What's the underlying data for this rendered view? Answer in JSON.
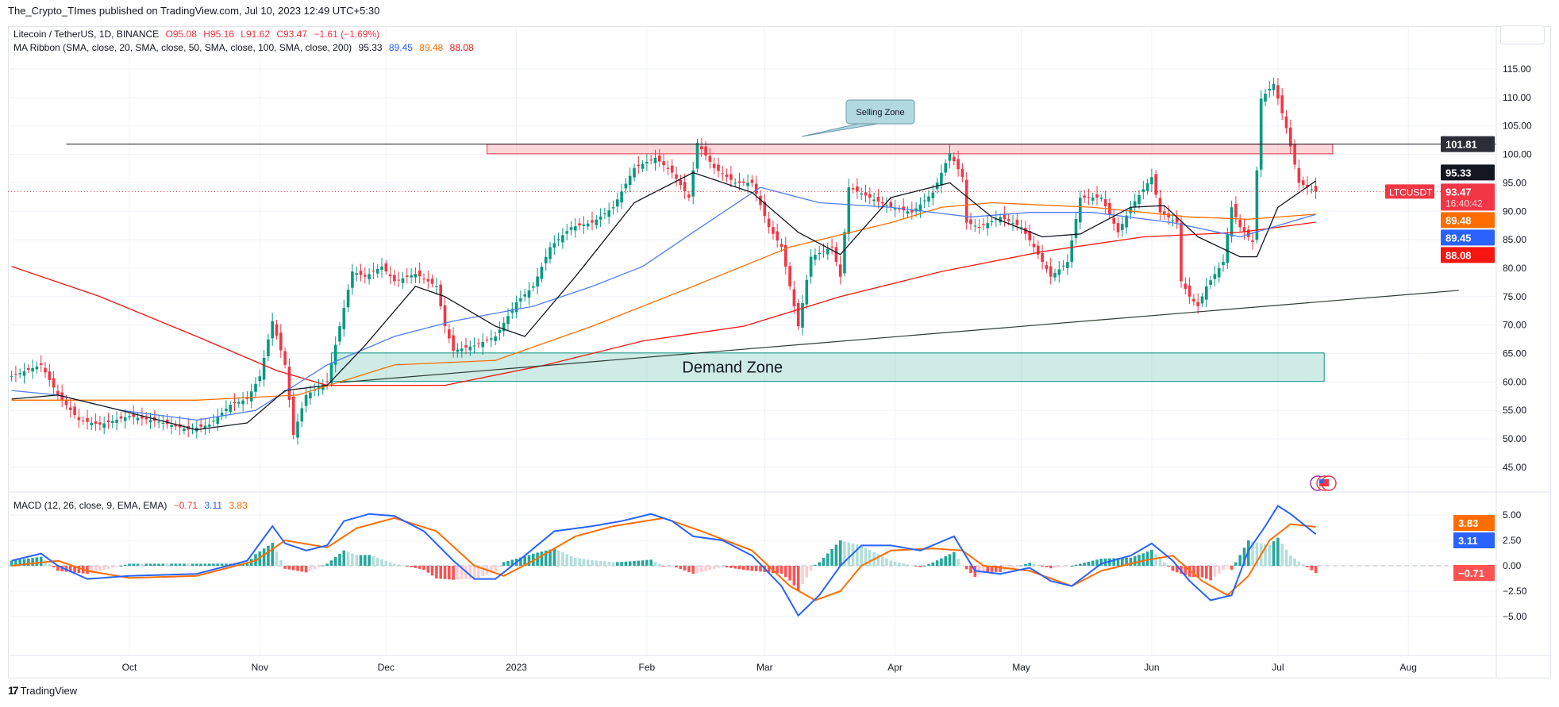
{
  "header": {
    "published": "The_Crypto_TImes published on TradingView.com, Jul 10, 2023 12:49 UTC+5:30"
  },
  "legend": {
    "symbol": "Litecoin / TetherUS, 1D, BINANCE",
    "open": "O95.08",
    "high": "H95.16",
    "low": "L91.62",
    "close": "C93.47",
    "change": "−1.61 (−1.69%)",
    "ma_title": "MA Ribbon (SMA, close, 20, SMA, close, 50, SMA, close, 100, SMA, close, 200)",
    "ma20": "95.33",
    "ma50": "89.45",
    "ma100": "89.48",
    "ma200": "88.08",
    "macd_title": "MACD (12, 26, close, 9, EMA, EMA)",
    "macd_hist": "−0.71",
    "macd_line": "3.11",
    "macd_signal": "3.83"
  },
  "footer": {
    "brand": "TradingView"
  },
  "colors": {
    "up": "#089981",
    "down": "#f23645",
    "ma20": "#131722",
    "ma50": "#4f7df5",
    "ma100": "#ff6d00",
    "ma200": "#f7150f",
    "macd": "#2962ff",
    "signal": "#ff6d00",
    "hist_up_strong": "#26a69a",
    "hist_up_weak": "#b2dfdb",
    "hist_down_strong": "#ff5252",
    "hist_down_weak": "#ffcdd2"
  },
  "chart_data": [
    {
      "type": "candlestick",
      "symbol": "LTCUSDT",
      "ylim": [
        42,
        118
      ],
      "yticks": [
        "115.00",
        "110.00",
        "105.00",
        "100.00",
        "95.00",
        "90.00",
        "85.00",
        "80.00",
        "75.00",
        "70.00",
        "65.00",
        "60.00",
        "55.00",
        "50.00",
        "45.00"
      ],
      "xticks": [
        {
          "label": "Oct",
          "date": "2022-10-01"
        },
        {
          "label": "Nov",
          "date": "2022-11-01"
        },
        {
          "label": "Dec",
          "date": "2022-12-01"
        },
        {
          "label": "2023",
          "date": "2023-01-01"
        },
        {
          "label": "Feb",
          "date": "2023-02-01"
        },
        {
          "label": "Mar",
          "date": "2023-03-01"
        },
        {
          "label": "Apr",
          "date": "2023-04-01"
        },
        {
          "label": "May",
          "date": "2023-05-01"
        },
        {
          "label": "Jun",
          "date": "2023-06-01"
        },
        {
          "label": "Jul",
          "date": "2023-07-01"
        },
        {
          "label": "Aug",
          "date": "2023-08-01"
        }
      ],
      "close": [
        [
          "2022-09-03",
          61
        ],
        [
          "2022-09-10",
          63
        ],
        [
          "2022-09-14",
          57.7
        ],
        [
          "2022-09-19",
          53.3
        ],
        [
          "2022-09-24",
          52.5
        ],
        [
          "2022-10-01",
          54
        ],
        [
          "2022-10-08",
          53
        ],
        [
          "2022-10-15",
          51.6
        ],
        [
          "2022-10-20",
          52.5
        ],
        [
          "2022-10-25",
          56
        ],
        [
          "2022-10-29",
          57
        ],
        [
          "2022-11-01",
          61
        ],
        [
          "2022-11-04",
          70.7
        ],
        [
          "2022-11-07",
          63
        ],
        [
          "2022-11-09",
          50.7
        ],
        [
          "2022-11-12",
          57.7
        ],
        [
          "2022-11-17",
          60
        ],
        [
          "2022-11-20",
          69.8
        ],
        [
          "2022-11-23",
          79.4
        ],
        [
          "2022-11-26",
          78.5
        ],
        [
          "2022-11-30",
          80.3
        ],
        [
          "2022-12-03",
          77.7
        ],
        [
          "2022-12-08",
          79
        ],
        [
          "2022-12-13",
          76.8
        ],
        [
          "2022-12-15",
          69.8
        ],
        [
          "2022-12-17",
          65.5
        ],
        [
          "2022-12-22",
          66.4
        ],
        [
          "2022-12-27",
          68
        ],
        [
          "2023-01-01",
          74
        ],
        [
          "2023-01-05",
          76.8
        ],
        [
          "2023-01-09",
          83.7
        ],
        [
          "2023-01-14",
          87.2
        ],
        [
          "2023-01-19",
          88
        ],
        [
          "2023-01-24",
          90.7
        ],
        [
          "2023-01-29",
          97.6
        ],
        [
          "2023-02-03",
          99.4
        ],
        [
          "2023-02-07",
          96.8
        ],
        [
          "2023-02-11",
          92.4
        ],
        [
          "2023-02-13",
          102
        ],
        [
          "2023-02-17",
          97.6
        ],
        [
          "2023-02-22",
          95
        ],
        [
          "2023-02-26",
          95
        ],
        [
          "2023-03-02",
          87.2
        ],
        [
          "2023-03-05",
          83.7
        ],
        [
          "2023-03-07",
          76.8
        ],
        [
          "2023-03-09",
          69.8
        ],
        [
          "2023-03-12",
          82
        ],
        [
          "2023-03-17",
          83.7
        ],
        [
          "2023-03-19",
          78.5
        ],
        [
          "2023-03-21",
          94.2
        ],
        [
          "2023-03-26",
          92.4
        ],
        [
          "2023-03-31",
          90.7
        ],
        [
          "2023-04-05",
          89.8
        ],
        [
          "2023-04-10",
          93.3
        ],
        [
          "2023-04-14",
          100.2
        ],
        [
          "2023-04-17",
          96
        ],
        [
          "2023-04-18",
          88
        ],
        [
          "2023-04-21",
          87.2
        ],
        [
          "2023-04-26",
          89
        ],
        [
          "2023-05-01",
          87.2
        ],
        [
          "2023-05-04",
          83.7
        ],
        [
          "2023-05-08",
          78.5
        ],
        [
          "2023-05-12",
          81.1
        ],
        [
          "2023-05-15",
          92.4
        ],
        [
          "2023-05-20",
          92.4
        ],
        [
          "2023-05-24",
          86.3
        ],
        [
          "2023-05-27",
          90.7
        ],
        [
          "2023-06-01",
          96
        ],
        [
          "2023-06-03",
          89.8
        ],
        [
          "2023-06-07",
          88
        ],
        [
          "2023-06-08",
          77.7
        ],
        [
          "2023-06-10",
          75
        ],
        [
          "2023-06-12",
          73.3
        ],
        [
          "2023-06-14",
          76.8
        ],
        [
          "2023-06-18",
          81.1
        ],
        [
          "2023-06-20",
          90.7
        ],
        [
          "2023-06-22",
          87.2
        ],
        [
          "2023-06-25",
          84.6
        ],
        [
          "2023-06-27",
          109.8
        ],
        [
          "2023-06-30",
          112.4
        ],
        [
          "2023-07-03",
          104.6
        ],
        [
          "2023-07-06",
          95
        ],
        [
          "2023-07-10",
          93.47
        ]
      ],
      "ma_ribbon": {
        "ma20": [
          [
            "2022-09-03",
            57
          ],
          [
            "2022-09-14",
            57.7
          ],
          [
            "2022-09-29",
            55
          ],
          [
            "2022-10-17",
            51.6
          ],
          [
            "2022-10-29",
            52.8
          ],
          [
            "2022-11-07",
            58.5
          ],
          [
            "2022-11-17",
            59.4
          ],
          [
            "2022-11-26",
            66.4
          ],
          [
            "2022-12-08",
            76.8
          ],
          [
            "2022-12-15",
            75
          ],
          [
            "2022-12-27",
            69.8
          ],
          [
            "2023-01-03",
            68
          ],
          [
            "2023-01-15",
            78.5
          ],
          [
            "2023-01-29",
            91.5
          ],
          [
            "2023-02-12",
            96.8
          ],
          [
            "2023-02-26",
            93.3
          ],
          [
            "2023-03-09",
            86.3
          ],
          [
            "2023-03-19",
            82.4
          ],
          [
            "2023-03-31",
            92.4
          ],
          [
            "2023-04-14",
            95
          ],
          [
            "2023-04-24",
            89
          ],
          [
            "2023-05-06",
            85.5
          ],
          [
            "2023-05-15",
            86
          ],
          [
            "2023-05-27",
            90.7
          ],
          [
            "2023-06-04",
            91
          ],
          [
            "2023-06-12",
            85.5
          ],
          [
            "2023-06-22",
            82
          ],
          [
            "2023-06-26",
            82
          ],
          [
            "2023-07-01",
            90.7
          ],
          [
            "2023-07-10",
            95.33
          ]
        ],
        "ma50": [
          [
            "2022-09-03",
            58.5
          ],
          [
            "2022-09-14",
            57.7
          ],
          [
            "2022-09-29",
            55
          ],
          [
            "2022-10-17",
            53.3
          ],
          [
            "2022-10-31",
            55
          ],
          [
            "2022-11-17",
            63
          ],
          [
            "2022-12-03",
            68
          ],
          [
            "2022-12-17",
            70.7
          ],
          [
            "2023-01-05",
            73.3
          ],
          [
            "2023-01-19",
            76.8
          ],
          [
            "2023-01-31",
            80.3
          ],
          [
            "2023-02-12",
            86.3
          ],
          [
            "2023-02-28",
            94.2
          ],
          [
            "2023-03-14",
            91.5
          ],
          [
            "2023-03-31",
            90.7
          ],
          [
            "2023-04-19",
            89
          ],
          [
            "2023-05-03",
            89.8
          ],
          [
            "2023-05-18",
            89.8
          ],
          [
            "2023-06-06",
            88
          ],
          [
            "2023-06-22",
            85.5
          ],
          [
            "2023-07-10",
            89.45
          ]
        ],
        "ma100": [
          [
            "2022-09-03",
            56.8
          ],
          [
            "2022-10-17",
            56.8
          ],
          [
            "2022-11-10",
            57.7
          ],
          [
            "2022-12-03",
            63
          ],
          [
            "2022-12-27",
            63.8
          ],
          [
            "2023-01-19",
            69.8
          ],
          [
            "2023-02-12",
            76.8
          ],
          [
            "2023-03-07",
            83.7
          ],
          [
            "2023-03-31",
            88
          ],
          [
            "2023-04-12",
            90.7
          ],
          [
            "2023-04-24",
            91.5
          ],
          [
            "2023-05-18",
            90.7
          ],
          [
            "2023-06-10",
            89
          ],
          [
            "2023-06-24",
            88.6
          ],
          [
            "2023-07-10",
            89.48
          ]
        ],
        "ma200": [
          [
            "2022-09-03",
            80.3
          ],
          [
            "2022-09-24",
            75
          ],
          [
            "2022-10-17",
            68
          ],
          [
            "2022-11-05",
            62
          ],
          [
            "2022-11-17",
            59.4
          ],
          [
            "2022-12-15",
            59.4
          ],
          [
            "2023-01-08",
            63
          ],
          [
            "2023-01-31",
            67.2
          ],
          [
            "2023-02-24",
            69.8
          ],
          [
            "2023-03-19",
            75
          ],
          [
            "2023-04-12",
            79.4
          ],
          [
            "2023-05-06",
            82.9
          ],
          [
            "2023-05-30",
            85.5
          ],
          [
            "2023-06-22",
            86.3
          ],
          [
            "2023-07-10",
            88.08
          ]
        ]
      },
      "annotations": {
        "resistance_line": {
          "price": 101.81,
          "label": "101.81",
          "from": "2022-09-16"
        },
        "selling_zone": {
          "label": "Selling Zone",
          "from": "2022-12-25",
          "to": "2023-07-14",
          "top": 101.8,
          "bottom": 100.1
        },
        "demand_zone": {
          "label": "Demand Zone",
          "from": "2022-11-18",
          "to": "2023-07-12",
          "top": 65.1,
          "bottom": 60.1
        },
        "trendline": {
          "from": [
            "2022-11-20",
            59.9
          ],
          "to": [
            "2023-08-13",
            76.1
          ]
        }
      },
      "price_labels": {
        "symbol": "LTCUSDT",
        "last": "93.47",
        "countdown": "16:40:42",
        "ma20": "95.33",
        "ma100": "89.48",
        "ma50": "89.45",
        "ma200": "88.08",
        "resistance": "101.81"
      }
    },
    {
      "type": "line",
      "name": "MACD (12, 26, close, 9, EMA, EMA)",
      "ylim": [
        -6.2,
        6.5
      ],
      "yticks": [
        "5.00",
        "2.50",
        "0.00",
        "−2.50",
        "−5.00"
      ],
      "macd": [
        [
          "2022-09-03",
          0.5
        ],
        [
          "2022-09-10",
          1.2
        ],
        [
          "2022-09-14",
          0
        ],
        [
          "2022-09-21",
          -1.3
        ],
        [
          "2022-10-01",
          -1
        ],
        [
          "2022-10-17",
          -0.8
        ],
        [
          "2022-10-29",
          0.5
        ],
        [
          "2022-11-04",
          3.9
        ],
        [
          "2022-11-07",
          2.2
        ],
        [
          "2022-11-12",
          1.5
        ],
        [
          "2022-11-17",
          2
        ],
        [
          "2022-11-21",
          4.4
        ],
        [
          "2022-11-27",
          5.1
        ],
        [
          "2022-12-03",
          4.9
        ],
        [
          "2022-12-10",
          3.4
        ],
        [
          "2022-12-17",
          0.5
        ],
        [
          "2022-12-22",
          -1.3
        ],
        [
          "2022-12-27",
          -1.3
        ],
        [
          "2023-01-03",
          1
        ],
        [
          "2023-01-10",
          3.4
        ],
        [
          "2023-01-19",
          3.9
        ],
        [
          "2023-01-26",
          4.4
        ],
        [
          "2023-02-02",
          5.1
        ],
        [
          "2023-02-07",
          4.4
        ],
        [
          "2023-02-12",
          2.9
        ],
        [
          "2023-02-19",
          2.5
        ],
        [
          "2023-02-26",
          1
        ],
        [
          "2023-03-05",
          -2
        ],
        [
          "2023-03-09",
          -4.9
        ],
        [
          "2023-03-14",
          -2.9
        ],
        [
          "2023-03-19",
          0
        ],
        [
          "2023-03-24",
          2
        ],
        [
          "2023-03-31",
          2
        ],
        [
          "2023-04-07",
          1.5
        ],
        [
          "2023-04-15",
          2.9
        ],
        [
          "2023-04-20",
          -0.5
        ],
        [
          "2023-04-26",
          -0.8
        ],
        [
          "2023-05-03",
          -0.2
        ],
        [
          "2023-05-08",
          -1.5
        ],
        [
          "2023-05-13",
          -2
        ],
        [
          "2023-05-20",
          0.2
        ],
        [
          "2023-05-27",
          1
        ],
        [
          "2023-06-01",
          2.2
        ],
        [
          "2023-06-06",
          0.5
        ],
        [
          "2023-06-10",
          -1.5
        ],
        [
          "2023-06-15",
          -3.4
        ],
        [
          "2023-06-20",
          -2.9
        ],
        [
          "2023-06-24",
          1.5
        ],
        [
          "2023-06-28",
          3.9
        ],
        [
          "2023-07-01",
          5.9
        ],
        [
          "2023-07-04",
          5.1
        ],
        [
          "2023-07-10",
          3.11
        ]
      ],
      "signal": [
        [
          "2022-09-03",
          0
        ],
        [
          "2022-09-14",
          0.5
        ],
        [
          "2022-09-21",
          -0.5
        ],
        [
          "2022-10-01",
          -1.2
        ],
        [
          "2022-10-17",
          -1
        ],
        [
          "2022-10-31",
          0.5
        ],
        [
          "2022-11-07",
          2.5
        ],
        [
          "2022-11-17",
          1.8
        ],
        [
          "2022-11-24",
          3.7
        ],
        [
          "2022-12-03",
          4.7
        ],
        [
          "2022-12-13",
          3.4
        ],
        [
          "2022-12-22",
          0
        ],
        [
          "2022-12-29",
          -1
        ],
        [
          "2023-01-05",
          0.5
        ],
        [
          "2023-01-15",
          2.9
        ],
        [
          "2023-01-24",
          3.9
        ],
        [
          "2023-02-05",
          4.7
        ],
        [
          "2023-02-14",
          3.4
        ],
        [
          "2023-02-26",
          1.5
        ],
        [
          "2023-03-07",
          -2
        ],
        [
          "2023-03-13",
          -3.4
        ],
        [
          "2023-03-19",
          -2.5
        ],
        [
          "2023-03-24",
          0
        ],
        [
          "2023-03-31",
          1.5
        ],
        [
          "2023-04-10",
          1.7
        ],
        [
          "2023-04-17",
          1.5
        ],
        [
          "2023-04-22",
          0
        ],
        [
          "2023-05-03",
          -0.5
        ],
        [
          "2023-05-13",
          -2
        ],
        [
          "2023-05-20",
          -0.5
        ],
        [
          "2023-05-30",
          0.5
        ],
        [
          "2023-06-06",
          1
        ],
        [
          "2023-06-13",
          -1.5
        ],
        [
          "2023-06-19",
          -2.9
        ],
        [
          "2023-06-24",
          -1
        ],
        [
          "2023-06-29",
          2.5
        ],
        [
          "2023-07-04",
          4.1
        ],
        [
          "2023-07-10",
          3.83
        ]
      ],
      "last_labels": {
        "signal": "3.83",
        "macd": "3.11",
        "hist": "−0.71"
      }
    }
  ]
}
